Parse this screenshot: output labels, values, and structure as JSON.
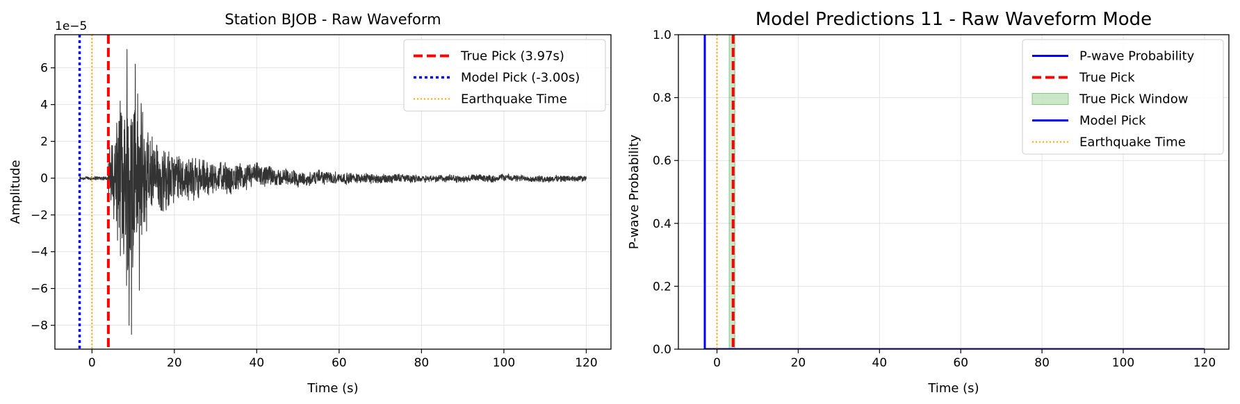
{
  "chart_data": [
    {
      "type": "line",
      "title": "Station BJOB - Raw Waveform",
      "xlabel": "Time (s)",
      "ylabel": "Amplitude",
      "y_offset_text": "1e−5",
      "xlim": [
        -9,
        126
      ],
      "ylim": [
        -9.3,
        7.8
      ],
      "x_ticks": [
        0,
        20,
        40,
        60,
        80,
        100,
        120
      ],
      "x_tick_labels": [
        "0",
        "20",
        "40",
        "60",
        "80",
        "100",
        "120"
      ],
      "y_ticks": [
        -8,
        -6,
        -4,
        -2,
        0,
        2,
        4,
        6
      ],
      "y_tick_labels": [
        "−8",
        "−6",
        "−4",
        "−2",
        "0",
        "2",
        "4",
        "6"
      ],
      "grid": true,
      "legend_position": "top-right",
      "waveform": {
        "color": "#333333",
        "x_range": [
          -3,
          120
        ],
        "noise_before_onset": 0.12,
        "onset": 3.97,
        "envelope": [
          {
            "t": 3.97,
            "amp": 1.5
          },
          {
            "t": 7,
            "amp": 4.5
          },
          {
            "t": 9,
            "amp": 7.0
          },
          {
            "t": 10,
            "amp": 6.5
          },
          {
            "t": 12,
            "amp": 4.5
          },
          {
            "t": 15,
            "amp": 2.5
          },
          {
            "t": 20,
            "amp": 1.5
          },
          {
            "t": 30,
            "amp": 1.0
          },
          {
            "t": 45,
            "amp": 0.55
          },
          {
            "t": 60,
            "amp": 0.35
          },
          {
            "t": 80,
            "amp": 0.22
          },
          {
            "t": 120,
            "amp": 0.18
          }
        ],
        "peaks": [
          {
            "t": 8.5,
            "v": 7.0
          },
          {
            "t": 9.6,
            "v": -8.5
          },
          {
            "t": 9.0,
            "v": -8.0
          },
          {
            "t": 10.5,
            "v": 6.2
          },
          {
            "t": 6.0,
            "v": 3.0
          },
          {
            "t": 11.5,
            "v": -6.1
          }
        ]
      },
      "vlines": [
        {
          "name": "True Pick (3.97s)",
          "x": 3.97,
          "color": "#ff0000",
          "style": "dashed"
        },
        {
          "name": "Model Pick (-3.00s)",
          "x": -3.0,
          "color": "#0000ff",
          "style": "dotted"
        },
        {
          "name": "Earthquake Time",
          "x": 0,
          "color": "#ffa500",
          "style": "dotted-thin"
        }
      ],
      "legend": [
        {
          "label": "True Pick (3.97s)",
          "color": "#ff0000",
          "style": "dashed"
        },
        {
          "label": "Model Pick (-3.00s)",
          "color": "#0000ff",
          "style": "dotted"
        },
        {
          "label": "Earthquake Time",
          "color": "#ffa500",
          "style": "dotted-thin"
        }
      ]
    },
    {
      "type": "line",
      "title": "Model Predictions 11 - Raw Waveform Mode",
      "xlabel": "Time (s)",
      "ylabel": "P-wave Probability",
      "xlim": [
        -9.5,
        126
      ],
      "ylim": [
        0,
        1
      ],
      "x_ticks": [
        0,
        20,
        40,
        60,
        80,
        100,
        120
      ],
      "x_tick_labels": [
        "0",
        "20",
        "40",
        "60",
        "80",
        "100",
        "120"
      ],
      "y_ticks": [
        0,
        0.2,
        0.4,
        0.6,
        0.8,
        1.0
      ],
      "y_tick_labels": [
        "0.0",
        "0.2",
        "0.4",
        "0.6",
        "0.8",
        "1.0"
      ],
      "grid": true,
      "legend_position": "top-right",
      "series": [
        {
          "name": "P-wave Probability",
          "color": "#0000ff",
          "x": [
            -3,
            120
          ],
          "y": [
            0,
            0
          ]
        }
      ],
      "pick_window": {
        "x": [
          3.0,
          4.4
        ],
        "color": "#2ca02c"
      },
      "vlines": [
        {
          "name": "Model Pick",
          "x": -3.0,
          "color": "#0000ff",
          "style": "solid"
        },
        {
          "name": "Earthquake Time",
          "x": 0,
          "color": "#ffa500",
          "style": "dotted-thin"
        },
        {
          "name": "True Pick",
          "x": 3.97,
          "color": "#ff0000",
          "style": "dashed"
        }
      ],
      "legend": [
        {
          "label": "P-wave Probability",
          "color": "#0000ff",
          "style": "solid"
        },
        {
          "label": "True Pick",
          "color": "#ff0000",
          "style": "dashed"
        },
        {
          "label": "True Pick Window",
          "color": "#2ca02c",
          "style": "patch"
        },
        {
          "label": "Model Pick",
          "color": "#0000ff",
          "style": "solid"
        },
        {
          "label": "Earthquake Time",
          "color": "#ffa500",
          "style": "dotted-thin"
        }
      ]
    }
  ]
}
